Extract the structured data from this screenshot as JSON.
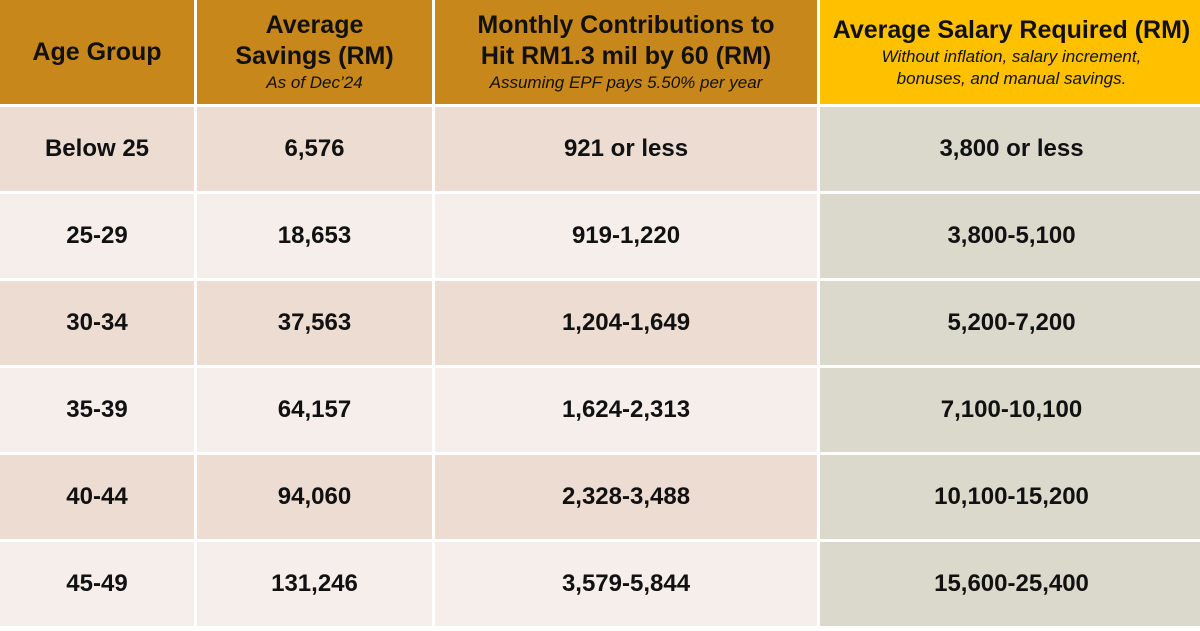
{
  "chart_data": {
    "type": "table",
    "columns": [
      {
        "title": "Age Group",
        "subtitle": ""
      },
      {
        "title": "Average Savings (RM)",
        "subtitle": "As of Dec’24"
      },
      {
        "title": "Monthly Contributions to Hit RM1.3 mil by 60 (RM)",
        "subtitle": "Assuming EPF pays 5.50% per year"
      },
      {
        "title": "Average Salary Required (RM)",
        "subtitle": "Without inflation, salary increment, bonuses, and manual savings."
      }
    ],
    "rows": [
      {
        "age_group": "Below 25",
        "avg_savings": "6,576",
        "monthly_contribution": "921 or less",
        "salary_required": "3,800 or less"
      },
      {
        "age_group": "25-29",
        "avg_savings": "18,653",
        "monthly_contribution": "919-1,220",
        "salary_required": "3,800-5,100"
      },
      {
        "age_group": "30-34",
        "avg_savings": "37,563",
        "monthly_contribution": "1,204-1,649",
        "salary_required": "5,200-7,200"
      },
      {
        "age_group": "35-39",
        "avg_savings": "64,157",
        "monthly_contribution": "1,624-2,313",
        "salary_required": "7,100-10,100"
      },
      {
        "age_group": "40-44",
        "avg_savings": "94,060",
        "monthly_contribution": "2,328-3,488",
        "salary_required": "10,100-15,200"
      },
      {
        "age_group": "45-49",
        "avg_savings": "131,246",
        "monthly_contribution": "3,579-5,844",
        "salary_required": "15,600-25,400"
      }
    ],
    "colors": {
      "header": "#c8871a",
      "header_highlight": "#ffc000",
      "row_odd": "#ecdcd1",
      "row_even": "#f5eeea",
      "salary_column": "#dbd8cc"
    }
  }
}
